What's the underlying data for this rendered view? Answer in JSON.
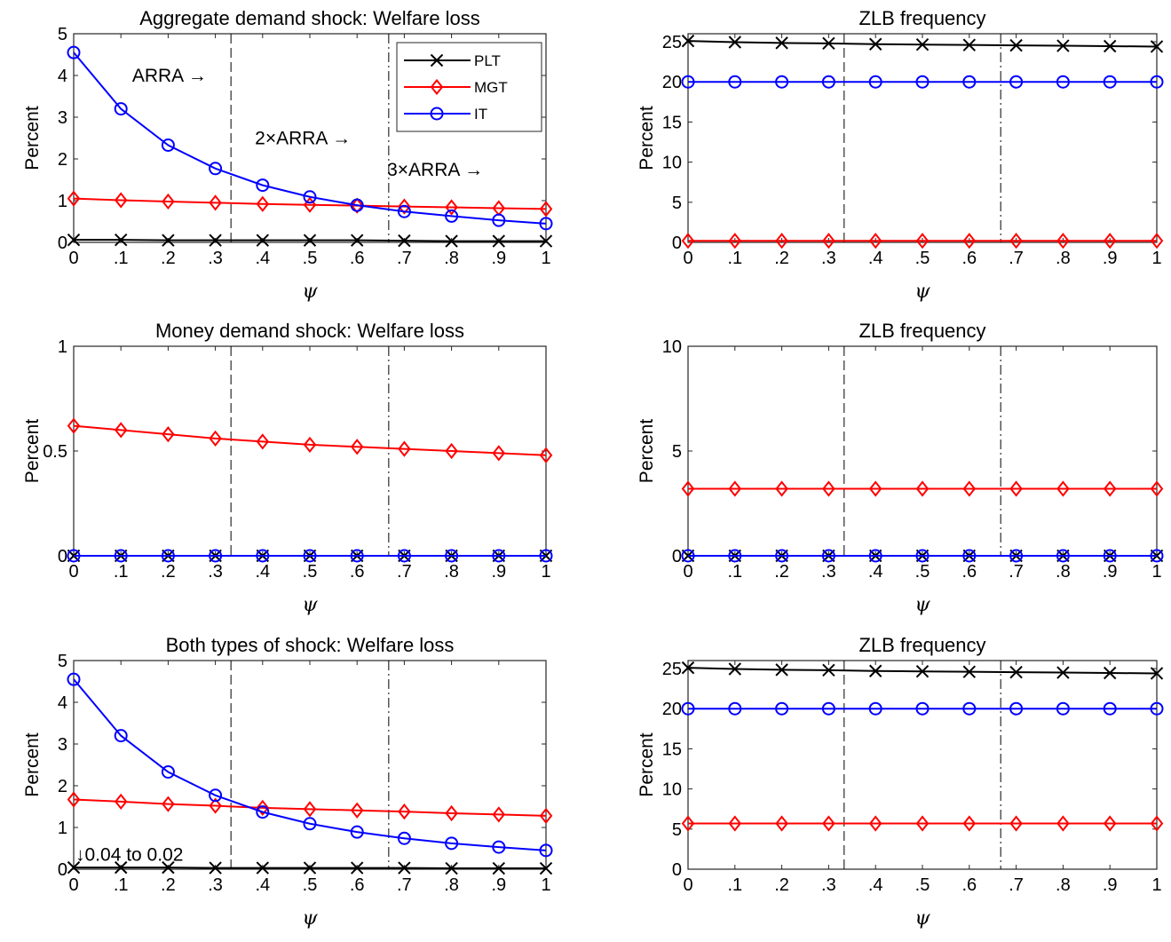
{
  "chart_data": [
    {
      "type": "line",
      "title": "Aggregate demand shock:  Welfare loss",
      "xlabel": "ψ",
      "ylabel": "Percent",
      "x": [
        0,
        0.1,
        0.2,
        0.3,
        0.4,
        0.5,
        0.6,
        0.7,
        0.8,
        0.9,
        1
      ],
      "xtick_labels": [
        "0",
        ".1",
        ".2",
        ".3",
        ".4",
        ".5",
        ".6",
        ".7",
        ".8",
        ".9",
        "1"
      ],
      "ylim": [
        0,
        5
      ],
      "yticks": [
        0,
        1,
        2,
        3,
        4,
        5
      ],
      "vlines": [
        {
          "x": 0.333,
          "style": "dashed"
        },
        {
          "x": 0.667,
          "style": "dashdot"
        }
      ],
      "legend": "top-right",
      "series": [
        {
          "name": "PLT",
          "color": "#000000",
          "marker": "x",
          "values": [
            0.06,
            0.06,
            0.05,
            0.05,
            0.05,
            0.05,
            0.05,
            0.04,
            0.03,
            0.03,
            0.03
          ]
        },
        {
          "name": "MGT",
          "color": "#ff0000",
          "marker": "diamond",
          "values": [
            1.05,
            1.01,
            0.98,
            0.95,
            0.92,
            0.9,
            0.88,
            0.86,
            0.84,
            0.82,
            0.8
          ]
        },
        {
          "name": "IT",
          "color": "#0000ff",
          "marker": "circle",
          "values": [
            4.55,
            3.2,
            2.33,
            1.77,
            1.37,
            1.09,
            0.89,
            0.74,
            0.63,
            0.53,
            0.45
          ]
        }
      ],
      "annotations": [
        {
          "text": "ARRA →",
          "x": 0.12,
          "y": 4.0
        },
        {
          "text": "2×ARRA →",
          "x": 0.38,
          "y": 2.5
        },
        {
          "text": "3×ARRA →",
          "x": 0.66,
          "y": 1.75
        }
      ]
    },
    {
      "type": "line",
      "title": "ZLB frequency",
      "xlabel": "ψ",
      "ylabel": "Percent",
      "x": [
        0,
        0.1,
        0.2,
        0.3,
        0.4,
        0.5,
        0.6,
        0.7,
        0.8,
        0.9,
        1
      ],
      "xtick_labels": [
        "0",
        ".1",
        ".2",
        ".3",
        ".4",
        ".5",
        ".6",
        ".7",
        ".8",
        ".9",
        "1"
      ],
      "ylim": [
        0,
        26
      ],
      "yticks": [
        0,
        5,
        10,
        15,
        20,
        25
      ],
      "vlines": [
        {
          "x": 0.333,
          "style": "dashed"
        },
        {
          "x": 0.667,
          "style": "dashdot"
        }
      ],
      "series": [
        {
          "name": "PLT",
          "color": "#000000",
          "marker": "x",
          "values": [
            25.1,
            24.95,
            24.85,
            24.8,
            24.7,
            24.65,
            24.6,
            24.55,
            24.5,
            24.45,
            24.4
          ]
        },
        {
          "name": "MGT",
          "color": "#ff0000",
          "marker": "diamond",
          "values": [
            0.2,
            0.2,
            0.2,
            0.2,
            0.2,
            0.2,
            0.2,
            0.2,
            0.2,
            0.2,
            0.2
          ]
        },
        {
          "name": "IT",
          "color": "#0000ff",
          "marker": "circle",
          "values": [
            20,
            20,
            20,
            20,
            20,
            20,
            20,
            20,
            20,
            20,
            20
          ]
        }
      ]
    },
    {
      "type": "line",
      "title": "Money demand shock:  Welfare loss",
      "xlabel": "ψ",
      "ylabel": "Percent",
      "x": [
        0,
        0.1,
        0.2,
        0.3,
        0.4,
        0.5,
        0.6,
        0.7,
        0.8,
        0.9,
        1
      ],
      "xtick_labels": [
        "0",
        ".1",
        ".2",
        ".3",
        ".4",
        ".5",
        ".6",
        ".7",
        ".8",
        ".9",
        "1"
      ],
      "ylim": [
        0,
        1
      ],
      "yticks": [
        0,
        0.5,
        1
      ],
      "ytick_labels": [
        "0",
        "0.5",
        "1"
      ],
      "vlines": [
        {
          "x": 0.333,
          "style": "dashed"
        },
        {
          "x": 0.667,
          "style": "dashdot"
        }
      ],
      "series": [
        {
          "name": "PLT",
          "color": "#000000",
          "marker": "x",
          "values": [
            0,
            0,
            0,
            0,
            0,
            0,
            0,
            0,
            0,
            0,
            0
          ]
        },
        {
          "name": "MGT",
          "color": "#ff0000",
          "marker": "diamond",
          "values": [
            0.62,
            0.6,
            0.58,
            0.56,
            0.545,
            0.53,
            0.52,
            0.51,
            0.5,
            0.49,
            0.48
          ]
        },
        {
          "name": "IT",
          "color": "#0000ff",
          "marker": "circle",
          "values": [
            0,
            0,
            0,
            0,
            0,
            0,
            0,
            0,
            0,
            0,
            0
          ]
        }
      ]
    },
    {
      "type": "line",
      "title": "ZLB frequency",
      "xlabel": "ψ",
      "ylabel": "Percent",
      "x": [
        0,
        0.1,
        0.2,
        0.3,
        0.4,
        0.5,
        0.6,
        0.7,
        0.8,
        0.9,
        1
      ],
      "xtick_labels": [
        "0",
        ".1",
        ".2",
        ".3",
        ".4",
        ".5",
        ".6",
        ".7",
        ".8",
        ".9",
        "1"
      ],
      "ylim": [
        0,
        10
      ],
      "yticks": [
        0,
        5,
        10
      ],
      "vlines": [
        {
          "x": 0.333,
          "style": "dashed"
        },
        {
          "x": 0.667,
          "style": "dashdot"
        }
      ],
      "series": [
        {
          "name": "PLT",
          "color": "#000000",
          "marker": "x",
          "values": [
            0,
            0,
            0,
            0,
            0,
            0,
            0,
            0,
            0,
            0,
            0
          ]
        },
        {
          "name": "MGT",
          "color": "#ff0000",
          "marker": "diamond",
          "values": [
            3.2,
            3.2,
            3.2,
            3.2,
            3.2,
            3.2,
            3.2,
            3.2,
            3.2,
            3.2,
            3.2
          ]
        },
        {
          "name": "IT",
          "color": "#0000ff",
          "marker": "circle",
          "values": [
            0,
            0,
            0,
            0,
            0,
            0,
            0,
            0,
            0,
            0,
            0
          ]
        }
      ]
    },
    {
      "type": "line",
      "title": "Both types of shock:  Welfare loss",
      "xlabel": "ψ",
      "ylabel": "Percent",
      "x": [
        0,
        0.1,
        0.2,
        0.3,
        0.4,
        0.5,
        0.6,
        0.7,
        0.8,
        0.9,
        1
      ],
      "xtick_labels": [
        "0",
        ".1",
        ".2",
        ".3",
        ".4",
        ".5",
        ".6",
        ".7",
        ".8",
        ".9",
        "1"
      ],
      "ylim": [
        0,
        5
      ],
      "yticks": [
        0,
        1,
        2,
        3,
        4,
        5
      ],
      "vlines": [
        {
          "x": 0.333,
          "style": "dashed"
        },
        {
          "x": 0.667,
          "style": "dashdot"
        }
      ],
      "series": [
        {
          "name": "PLT",
          "color": "#000000",
          "marker": "x",
          "values": [
            0.04,
            0.04,
            0.04,
            0.03,
            0.03,
            0.03,
            0.03,
            0.03,
            0.02,
            0.02,
            0.02
          ]
        },
        {
          "name": "MGT",
          "color": "#ff0000",
          "marker": "diamond",
          "values": [
            1.67,
            1.62,
            1.56,
            1.52,
            1.47,
            1.44,
            1.41,
            1.38,
            1.34,
            1.31,
            1.28
          ]
        },
        {
          "name": "IT",
          "color": "#0000ff",
          "marker": "circle",
          "values": [
            4.55,
            3.2,
            2.33,
            1.77,
            1.37,
            1.09,
            0.89,
            0.74,
            0.62,
            0.53,
            0.45
          ]
        }
      ],
      "annotations": [
        {
          "text": "↓0.04 to 0.02",
          "x": 0.0,
          "y": 0.35
        }
      ]
    },
    {
      "type": "line",
      "title": "ZLB frequency",
      "xlabel": "ψ",
      "ylabel": "Percent",
      "x": [
        0,
        0.1,
        0.2,
        0.3,
        0.4,
        0.5,
        0.6,
        0.7,
        0.8,
        0.9,
        1
      ],
      "xtick_labels": [
        "0",
        ".1",
        ".2",
        ".3",
        ".4",
        ".5",
        ".6",
        ".7",
        ".8",
        ".9",
        "1"
      ],
      "ylim": [
        0,
        26
      ],
      "yticks": [
        0,
        5,
        10,
        15,
        20,
        25
      ],
      "vlines": [
        {
          "x": 0.333,
          "style": "dashed"
        },
        {
          "x": 0.667,
          "style": "dashdot"
        }
      ],
      "series": [
        {
          "name": "PLT",
          "color": "#000000",
          "marker": "x",
          "values": [
            25.1,
            24.95,
            24.85,
            24.8,
            24.7,
            24.65,
            24.6,
            24.55,
            24.5,
            24.45,
            24.4
          ]
        },
        {
          "name": "MGT",
          "color": "#ff0000",
          "marker": "diamond",
          "values": [
            5.7,
            5.7,
            5.7,
            5.7,
            5.7,
            5.7,
            5.7,
            5.7,
            5.7,
            5.7,
            5.7
          ]
        },
        {
          "name": "IT",
          "color": "#0000ff",
          "marker": "circle",
          "values": [
            20,
            20,
            20,
            20,
            20,
            20,
            20,
            20,
            20,
            20,
            20
          ]
        }
      ]
    }
  ]
}
